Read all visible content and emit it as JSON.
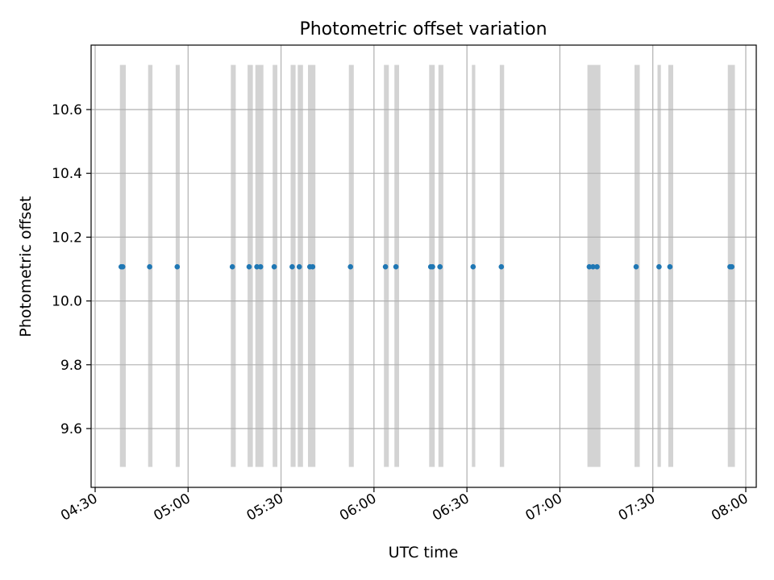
{
  "chart_data": {
    "type": "scatter",
    "title": "Photometric offset variation",
    "xlabel": "UTC time",
    "ylabel": "Photometric offset",
    "xlim_minutes": [
      268,
      484
    ],
    "ylim": [
      9.43,
      10.79
    ],
    "y_ticks": [
      {
        "value": 9.6,
        "label": "9.6"
      },
      {
        "value": 9.8,
        "label": "9.8"
      },
      {
        "value": 10.0,
        "label": "10.0"
      },
      {
        "value": 10.2,
        "label": "10.2"
      },
      {
        "value": 10.4,
        "label": "10.4"
      },
      {
        "value": 10.6,
        "label": "10.6"
      }
    ],
    "x_ticks": [
      {
        "value": 270,
        "label": "04:30"
      },
      {
        "value": 300,
        "label": "05:00"
      },
      {
        "value": 330,
        "label": "05:30"
      },
      {
        "value": 360,
        "label": "06:00"
      },
      {
        "value": 390,
        "label": "06:30"
      },
      {
        "value": 420,
        "label": "07:00"
      },
      {
        "value": 450,
        "label": "07:30"
      },
      {
        "value": 480,
        "label": "08:00"
      }
    ],
    "grid": true,
    "band_y_range": [
      9.48,
      10.74
    ],
    "band_color": "#d3d3d3",
    "point_color": "#1f77b4",
    "point_value": 10.107,
    "points_minutes": [
      278.4,
      278.9,
      287.6,
      296.5,
      314.3,
      319.7,
      322.2,
      323.4,
      327.8,
      333.6,
      335.9,
      339.3,
      340.2,
      352.4,
      363.7,
      367.1,
      378.3,
      378.9,
      381.3,
      392.0,
      401.1,
      429.5,
      430.7,
      432.0,
      444.6,
      452.0,
      455.5,
      474.9,
      475.5
    ],
    "bands_minutes": [
      [
        278.0,
        279.9
      ],
      [
        287.1,
        288.5
      ],
      [
        296.0,
        297.3
      ],
      [
        313.8,
        315.4
      ],
      [
        319.2,
        320.9
      ],
      [
        321.7,
        324.3
      ],
      [
        327.3,
        328.8
      ],
      [
        333.1,
        334.7
      ],
      [
        335.4,
        337.1
      ],
      [
        338.7,
        341.1
      ],
      [
        351.9,
        353.5
      ],
      [
        363.2,
        364.8
      ],
      [
        366.6,
        368.1
      ],
      [
        377.8,
        379.6
      ],
      [
        380.8,
        382.4
      ],
      [
        391.6,
        392.7
      ],
      [
        400.6,
        402.0
      ],
      [
        428.9,
        433.1
      ],
      [
        444.1,
        445.8
      ],
      [
        451.5,
        452.6
      ],
      [
        455.0,
        456.6
      ],
      [
        474.2,
        476.5
      ]
    ]
  }
}
